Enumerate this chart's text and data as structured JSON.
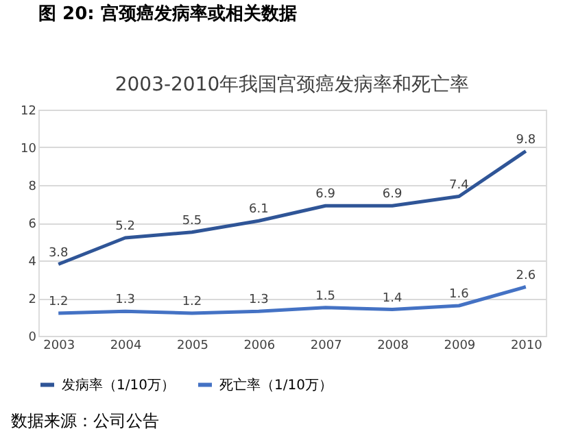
{
  "chart_data": {
    "type": "line",
    "title": "图 20: 宫颈癌发病率或相关数据",
    "subtitle": "2003-2010年我国宫颈癌发病率和死亡率",
    "categories": [
      "2003",
      "2004",
      "2005",
      "2006",
      "2007",
      "2008",
      "2009",
      "2010"
    ],
    "series": [
      {
        "name": "发病率（1/10万）",
        "color": "#2f5597",
        "values": [
          3.8,
          5.2,
          5.5,
          6.1,
          6.9,
          6.9,
          7.4,
          9.8
        ]
      },
      {
        "name": "死亡率（1/10万）",
        "color": "#4472c4",
        "values": [
          1.2,
          1.3,
          1.2,
          1.3,
          1.5,
          1.4,
          1.6,
          2.6
        ]
      }
    ],
    "ylim": [
      0,
      12
    ],
    "yticks": [
      0,
      2,
      4,
      6,
      8,
      10,
      12
    ],
    "grid": "y",
    "legend": "bottom",
    "data_labels": true,
    "marker": "none",
    "line_style": "solid",
    "annotations": [
      "数据来源：公司公告"
    ]
  }
}
